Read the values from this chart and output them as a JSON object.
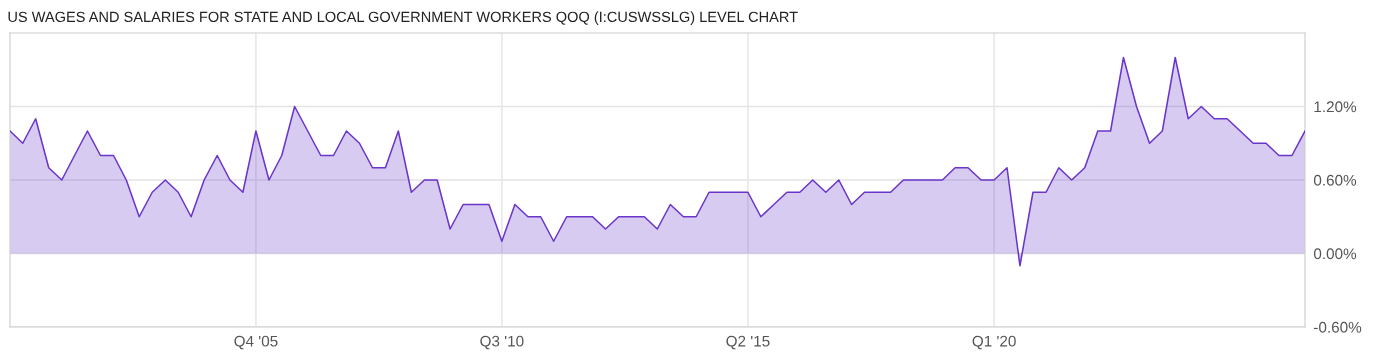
{
  "chart_data": {
    "type": "area",
    "title": "US WAGES AND SALARIES FOR STATE AND LOCAL GOVERNMENT WORKERS QOQ (I:CUSWSSLG) LEVEL CHART",
    "x": [
      "2001-01",
      "2001-04",
      "2001-07",
      "2001-10",
      "2002-01",
      "2002-04",
      "2002-07",
      "2002-10",
      "2003-01",
      "2003-04",
      "2003-07",
      "2003-10",
      "2004-01",
      "2004-04",
      "2004-07",
      "2004-10",
      "2005-01",
      "2005-04",
      "2005-07",
      "2005-10",
      "2006-01",
      "2006-04",
      "2006-07",
      "2006-10",
      "2007-01",
      "2007-04",
      "2007-07",
      "2007-10",
      "2008-01",
      "2008-04",
      "2008-07",
      "2008-10",
      "2009-01",
      "2009-04",
      "2009-07",
      "2009-10",
      "2010-01",
      "2010-04",
      "2010-07",
      "2010-10",
      "2011-01",
      "2011-04",
      "2011-07",
      "2011-10",
      "2012-01",
      "2012-04",
      "2012-07",
      "2012-10",
      "2013-01",
      "2013-04",
      "2013-07",
      "2013-10",
      "2014-01",
      "2014-04",
      "2014-07",
      "2014-10",
      "2015-01",
      "2015-04",
      "2015-07",
      "2015-10",
      "2016-01",
      "2016-04",
      "2016-07",
      "2016-10",
      "2017-01",
      "2017-04",
      "2017-07",
      "2017-10",
      "2018-01",
      "2018-04",
      "2018-07",
      "2018-10",
      "2019-01",
      "2019-04",
      "2019-07",
      "2019-10",
      "2020-01",
      "2020-04",
      "2020-07",
      "2020-10",
      "2021-01",
      "2021-04",
      "2021-07",
      "2021-10",
      "2022-01",
      "2022-04",
      "2022-07",
      "2022-10",
      "2023-01",
      "2023-04",
      "2023-07",
      "2023-10",
      "2024-01",
      "2024-04",
      "2024-07",
      "2024-10",
      "2025-01",
      "2025-04",
      "2025-07",
      "2025-10",
      "2026-01"
    ],
    "series": [
      {
        "color": "#6a35c9",
        "values": [
          1.0,
          0.9,
          1.1,
          0.7,
          0.6,
          0.8,
          1.0,
          0.8,
          0.8,
          0.6,
          0.3,
          0.5,
          0.6,
          0.5,
          0.3,
          0.6,
          0.8,
          0.6,
          0.5,
          1.0,
          0.6,
          0.8,
          1.2,
          1.0,
          0.8,
          0.8,
          1.0,
          0.9,
          0.7,
          0.7,
          1.0,
          0.5,
          0.6,
          0.6,
          0.2,
          0.4,
          0.4,
          0.4,
          0.1,
          0.4,
          0.3,
          0.3,
          0.1,
          0.3,
          0.3,
          0.3,
          0.2,
          0.3,
          0.3,
          0.3,
          0.2,
          0.4,
          0.3,
          0.3,
          0.5,
          0.5,
          0.5,
          0.5,
          0.3,
          0.4,
          0.5,
          0.5,
          0.6,
          0.5,
          0.6,
          0.4,
          0.5,
          0.5,
          0.5,
          0.6,
          0.6,
          0.6,
          0.6,
          0.7,
          0.7,
          0.6,
          0.6,
          0.7,
          -0.1,
          0.5,
          0.5,
          0.7,
          0.6,
          0.7,
          1.0,
          1.0,
          1.6,
          1.2,
          0.9,
          1.0,
          1.6,
          1.1,
          1.2,
          1.1,
          1.1,
          1.0,
          0.9,
          0.9,
          0.8,
          0.8,
          1.0
        ]
      }
    ],
    "xlim": [
      "2001-01",
      "2026-01"
    ],
    "xticks": [
      {
        "value": "2005-10",
        "label": "Q4 '05"
      },
      {
        "value": "2010-07",
        "label": "Q3 '10"
      },
      {
        "value": "2015-04",
        "label": "Q2 '15"
      },
      {
        "value": "2020-01",
        "label": "Q1 '20"
      }
    ],
    "ylim": [
      -0.6,
      1.8
    ],
    "yticks": [
      {
        "value": -0.6,
        "label": "-0.60%"
      },
      {
        "value": 0,
        "label": "0.00%"
      },
      {
        "value": 0.6,
        "label": "0.60%"
      },
      {
        "value": 1.2,
        "label": "1.20%"
      }
    ],
    "grid": true,
    "legend": false
  }
}
